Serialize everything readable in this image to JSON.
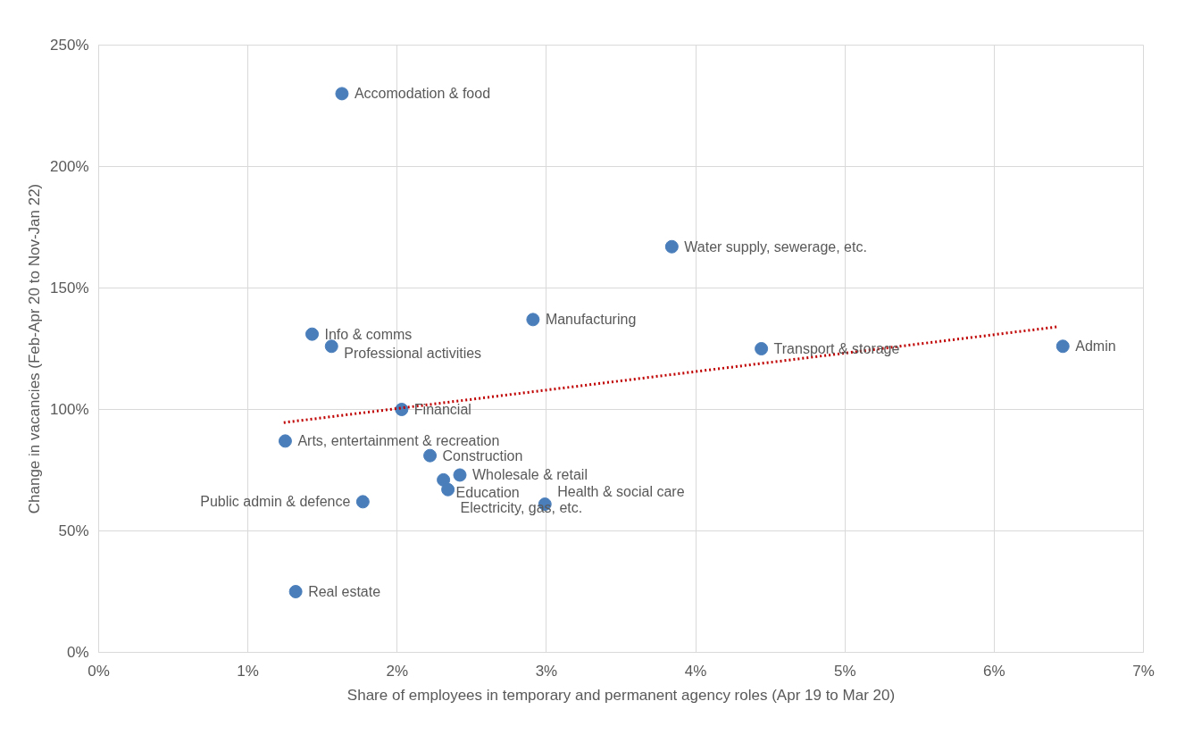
{
  "chart_data": {
    "type": "scatter",
    "xlabel": "Share of employees in temporary and permanent agency roles (Apr 19 to Mar 20)",
    "ylabel": "Change in vacancies (Feb-Apr 20 to Nov-Jan 22)",
    "xlim": [
      0,
      7
    ],
    "ylim": [
      0,
      250
    ],
    "xticks": [
      {
        "value": 0,
        "label": "0%"
      },
      {
        "value": 1,
        "label": "1%"
      },
      {
        "value": 2,
        "label": "2%"
      },
      {
        "value": 3,
        "label": "3%"
      },
      {
        "value": 4,
        "label": "4%"
      },
      {
        "value": 5,
        "label": "5%"
      },
      {
        "value": 6,
        "label": "6%"
      },
      {
        "value": 7,
        "label": "7%"
      }
    ],
    "yticks": [
      {
        "value": 0,
        "label": "0%"
      },
      {
        "value": 50,
        "label": "50%"
      },
      {
        "value": 100,
        "label": "100%"
      },
      {
        "value": 150,
        "label": "150%"
      },
      {
        "value": 200,
        "label": "200%"
      },
      {
        "value": 250,
        "label": "250%"
      }
    ],
    "grid": true,
    "series": [
      {
        "marker": "circle",
        "color": "#4a7ebb",
        "x": [
          1.63,
          3.84,
          2.91,
          1.43,
          1.56,
          4.44,
          6.46,
          2.03,
          1.25,
          2.22,
          2.42,
          2.31,
          2.34,
          1.77,
          2.99,
          1.32
        ],
        "values": [
          230,
          167,
          137,
          131,
          126,
          125,
          126,
          100,
          87,
          81,
          73,
          71,
          67,
          62,
          61,
          25
        ]
      },
      {
        "type": "line",
        "color": "#c00000",
        "line_style": "dotted",
        "x": [
          1.24,
          6.42
        ],
        "values": [
          94.6,
          134
        ]
      }
    ],
    "annotations": [
      {
        "text": "Accomodation & food",
        "x": 1.63,
        "y": 230
      },
      {
        "text": "Water supply, sewerage, etc.",
        "x": 3.84,
        "y": 167
      },
      {
        "text": "Manufacturing",
        "x": 2.91,
        "y": 137
      },
      {
        "text": "Info & comms",
        "x": 1.43,
        "y": 131
      },
      {
        "text": "Professional activities",
        "x": 1.56,
        "y": 126
      },
      {
        "text": "Transport & storage",
        "x": 4.44,
        "y": 125
      },
      {
        "text": "Admin",
        "x": 6.46,
        "y": 126
      },
      {
        "text": "Financial",
        "x": 2.03,
        "y": 100
      },
      {
        "text": "Arts, entertainment & recreation",
        "x": 1.25,
        "y": 87
      },
      {
        "text": "Construction",
        "x": 2.22,
        "y": 81
      },
      {
        "text": "Wholesale & retail",
        "x": 2.42,
        "y": 73
      },
      {
        "text": "Education",
        "x": 2.31,
        "y": 71
      },
      {
        "text": "Electricity, gas, etc.",
        "x": 2.34,
        "y": 67
      },
      {
        "text": "Public admin & defence",
        "x": 1.77,
        "y": 62
      },
      {
        "text": "Health & social care",
        "x": 2.99,
        "y": 61
      },
      {
        "text": "Real estate",
        "x": 1.32,
        "y": 25
      }
    ]
  }
}
